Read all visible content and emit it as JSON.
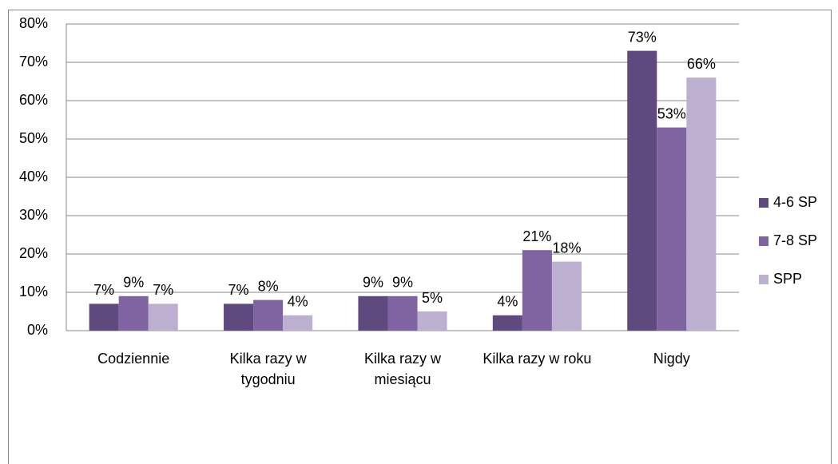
{
  "chart_data": {
    "type": "bar",
    "categories": [
      "Codziennie",
      "Kilka razy w tygodniu",
      "Kilka razy w miesiącu",
      "Kilka razy w roku",
      "Nigdy"
    ],
    "series": [
      {
        "name": "4-6 SP",
        "color": "#5f4a7f",
        "values": [
          7,
          7,
          9,
          4,
          73
        ],
        "value_labels": [
          "7%",
          "7%",
          "9%",
          "4%",
          "73%"
        ]
      },
      {
        "name": "7-8 SP",
        "color": "#8064a2",
        "values": [
          9,
          8,
          9,
          21,
          53
        ],
        "value_labels": [
          "9%",
          "8%",
          "9%",
          "21%",
          "53%"
        ]
      },
      {
        "name": "SPP",
        "color": "#bcafcf",
        "values": [
          7,
          4,
          5,
          18,
          66
        ],
        "value_labels": [
          "7%",
          "4%",
          "5%",
          "18%",
          "66%"
        ]
      }
    ],
    "ylim": [
      0,
      80
    ],
    "yticks": [
      {
        "value": 0,
        "label": "0%"
      },
      {
        "value": 10,
        "label": "10%"
      },
      {
        "value": 20,
        "label": "20%"
      },
      {
        "value": 30,
        "label": "30%"
      },
      {
        "value": 40,
        "label": "40%"
      },
      {
        "value": 50,
        "label": "50%"
      },
      {
        "value": 60,
        "label": "60%"
      },
      {
        "value": 70,
        "label": "70%"
      },
      {
        "value": 80,
        "label": "80%"
      }
    ],
    "grid": true,
    "legend": "right"
  }
}
